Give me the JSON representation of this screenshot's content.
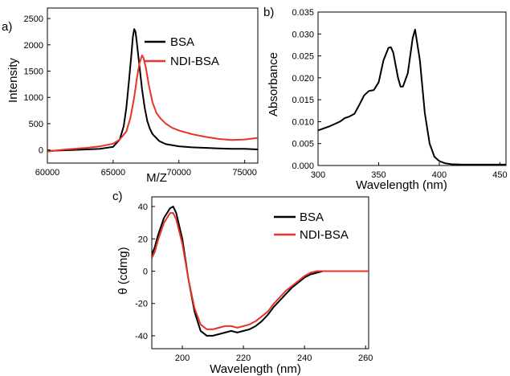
{
  "colors": {
    "bsa": "#000000",
    "ndi_bsa": "#e8332a",
    "axis": "#000000"
  },
  "chart_data": [
    {
      "panel": "a)",
      "type": "line",
      "xlabel": "M/Z",
      "ylabel": "Intensity",
      "xlim": [
        60000,
        76000
      ],
      "ylim": [
        -250,
        2700
      ],
      "xticks": [
        60000,
        65000,
        70000,
        75000
      ],
      "yticks": [
        0,
        500,
        1000,
        1500,
        2000,
        2500
      ],
      "legend_position": "top-right",
      "series": [
        {
          "name": "BSA",
          "color": "#000000",
          "x": [
            60000,
            61000,
            62000,
            63000,
            64000,
            65000,
            65500,
            65800,
            66000,
            66200,
            66400,
            66500,
            66600,
            66700,
            66800,
            67000,
            67200,
            67400,
            67600,
            67800,
            68000,
            68500,
            69000,
            70000,
            71000,
            72000,
            73000,
            74000,
            75000,
            76000
          ],
          "y": [
            -20,
            -10,
            0,
            10,
            20,
            60,
            200,
            450,
            800,
            1300,
            1850,
            2150,
            2300,
            2250,
            2050,
            1600,
            1150,
            800,
            550,
            400,
            300,
            170,
            110,
            70,
            50,
            40,
            30,
            20,
            20,
            10
          ]
        },
        {
          "name": "NDI-BSA",
          "color": "#e8332a",
          "x": [
            60000,
            61000,
            62000,
            63000,
            64000,
            65000,
            65500,
            66000,
            66300,
            66600,
            66800,
            67000,
            67200,
            67300,
            67500,
            67700,
            68000,
            68300,
            68600,
            69000,
            69500,
            70000,
            71000,
            72000,
            73000,
            74000,
            75000,
            76000
          ],
          "y": [
            -30,
            0,
            20,
            40,
            70,
            120,
            200,
            350,
            600,
            1000,
            1350,
            1650,
            1800,
            1760,
            1550,
            1250,
            900,
            700,
            600,
            500,
            420,
            370,
            300,
            250,
            210,
            190,
            200,
            230
          ]
        }
      ]
    },
    {
      "panel": "b)",
      "type": "line",
      "xlabel": "Wavelength (nm)",
      "ylabel": "Absorbance",
      "xlim": [
        300,
        455
      ],
      "ylim": [
        0,
        0.035
      ],
      "xticks": [
        300,
        350,
        400,
        450
      ],
      "yticks": [
        "0.000",
        "0.005",
        "0.010",
        "0.015",
        "0.020",
        "0.025",
        "0.030",
        "0.035"
      ],
      "series": [
        {
          "color": "#000000",
          "x": [
            300,
            310,
            318,
            322,
            326,
            330,
            334,
            338,
            342,
            346,
            350,
            354,
            358,
            360,
            362,
            366,
            368,
            370,
            374,
            378,
            380,
            384,
            388,
            392,
            396,
            400,
            405,
            410,
            420,
            430,
            440,
            455
          ],
          "y": [
            0.008,
            0.009,
            0.01,
            0.0108,
            0.0112,
            0.0118,
            0.0138,
            0.016,
            0.017,
            0.0172,
            0.019,
            0.024,
            0.0268,
            0.027,
            0.0258,
            0.02,
            0.018,
            0.018,
            0.021,
            0.029,
            0.031,
            0.024,
            0.012,
            0.005,
            0.002,
            0.001,
            0.0005,
            0.0003,
            0.0002,
            0.0002,
            0.0002,
            0.0002
          ]
        }
      ]
    },
    {
      "panel": "c)",
      "type": "line",
      "xlabel": "Wavelength (nm)",
      "ylabel": "θ (cdmg)",
      "xlim": [
        190,
        261
      ],
      "ylim": [
        -48,
        46
      ],
      "xticks": [
        200,
        220,
        240,
        260
      ],
      "yticks": [
        -40,
        -20,
        0,
        20,
        40
      ],
      "legend_position": "top-right",
      "series": [
        {
          "name": "BSA",
          "color": "#000000",
          "x": [
            190,
            191,
            192,
            194,
            196,
            197,
            198,
            200,
            202,
            204,
            206,
            208,
            210,
            212,
            214,
            216,
            218,
            220,
            222,
            224,
            226,
            228,
            230,
            232,
            234,
            236,
            238,
            240,
            242,
            244,
            246,
            248,
            250,
            252,
            255,
            258,
            261
          ],
          "y": [
            10,
            15,
            22,
            33,
            39,
            40,
            36,
            20,
            -5,
            -25,
            -37,
            -40,
            -40,
            -39,
            -38,
            -37,
            -38,
            -37,
            -36,
            -34,
            -31,
            -27,
            -22,
            -18,
            -14,
            -10,
            -7,
            -4,
            -2,
            -1,
            0,
            0,
            0,
            0,
            0,
            0,
            0
          ]
        },
        {
          "name": "NDI-BSA",
          "color": "#e8332a",
          "x": [
            190,
            191,
            192,
            194,
            196,
            197,
            198,
            200,
            202,
            204,
            206,
            208,
            210,
            212,
            214,
            216,
            218,
            220,
            222,
            224,
            226,
            228,
            230,
            232,
            234,
            236,
            238,
            240,
            242,
            244,
            246,
            248,
            250,
            252,
            255,
            258,
            261
          ],
          "y": [
            8,
            12,
            19,
            30,
            36,
            36,
            32,
            17,
            -5,
            -23,
            -33,
            -36,
            -36,
            -35,
            -34,
            -34,
            -35,
            -34,
            -33,
            -31,
            -28,
            -25,
            -20,
            -16,
            -12,
            -9,
            -6,
            -3,
            -1,
            0,
            0,
            0,
            0,
            0,
            0,
            0,
            0
          ]
        }
      ]
    }
  ]
}
